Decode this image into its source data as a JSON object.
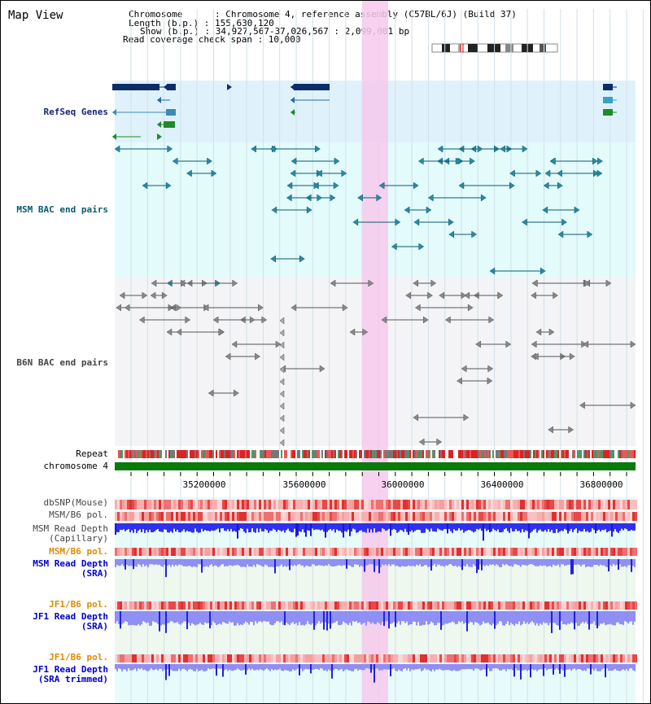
{
  "title": "Map View",
  "info": {
    "chromosome": "Chromosome      : Chromosome 4, reference assembly (C57BL/6J) (Build 37)",
    "length": "Length (b.p.) : 155,630,120",
    "show": "Show (b.p.) : 34,927,567-37,026,567 : 2,099,001 bp",
    "coverage": "Read coverage check span : 10,000"
  },
  "tracks": {
    "refseq": "RefSeq Genes",
    "msm_bac": "MSM BAC end pairs",
    "b6n_bac": "B6N BAC end pairs",
    "repeat": "Repeat",
    "chromosome": "chromosome 4",
    "dbsnp": "dbSNP(Mouse)",
    "msm_pol": "MSM/B6 pol.",
    "msm_depth_cap_1": "MSM Read Depth",
    "msm_depth_cap_2": "(Capillary)",
    "msm_pol2": "MSM/B6 pol.",
    "msm_depth_sra_1": "MSM Read Depth",
    "msm_depth_sra_2": "(SRA)",
    "jf1_pol": "JF1/B6 pol.",
    "jf1_depth_sra_1": "JF1 Read Depth",
    "jf1_depth_sra_2": "(SRA)",
    "jf1_pol2": "JF1/B6 pol.",
    "jf1_depth_trim_1": "JF1 Read Depth",
    "jf1_depth_trim_2": "(SRA trimmed)"
  },
  "axis_ticks": [
    "35200000",
    "35600000",
    "36000000",
    "36400000",
    "36800000"
  ],
  "colors": {
    "refseq_label": "#1a237e",
    "msm_label": "#0a5a6e",
    "b6n_label": "#444444",
    "orange_label": "#e08a00",
    "blue_label": "#0000cc",
    "highlight": "#f6c9ec",
    "chromosome_bar": "#0a7a0a"
  }
}
